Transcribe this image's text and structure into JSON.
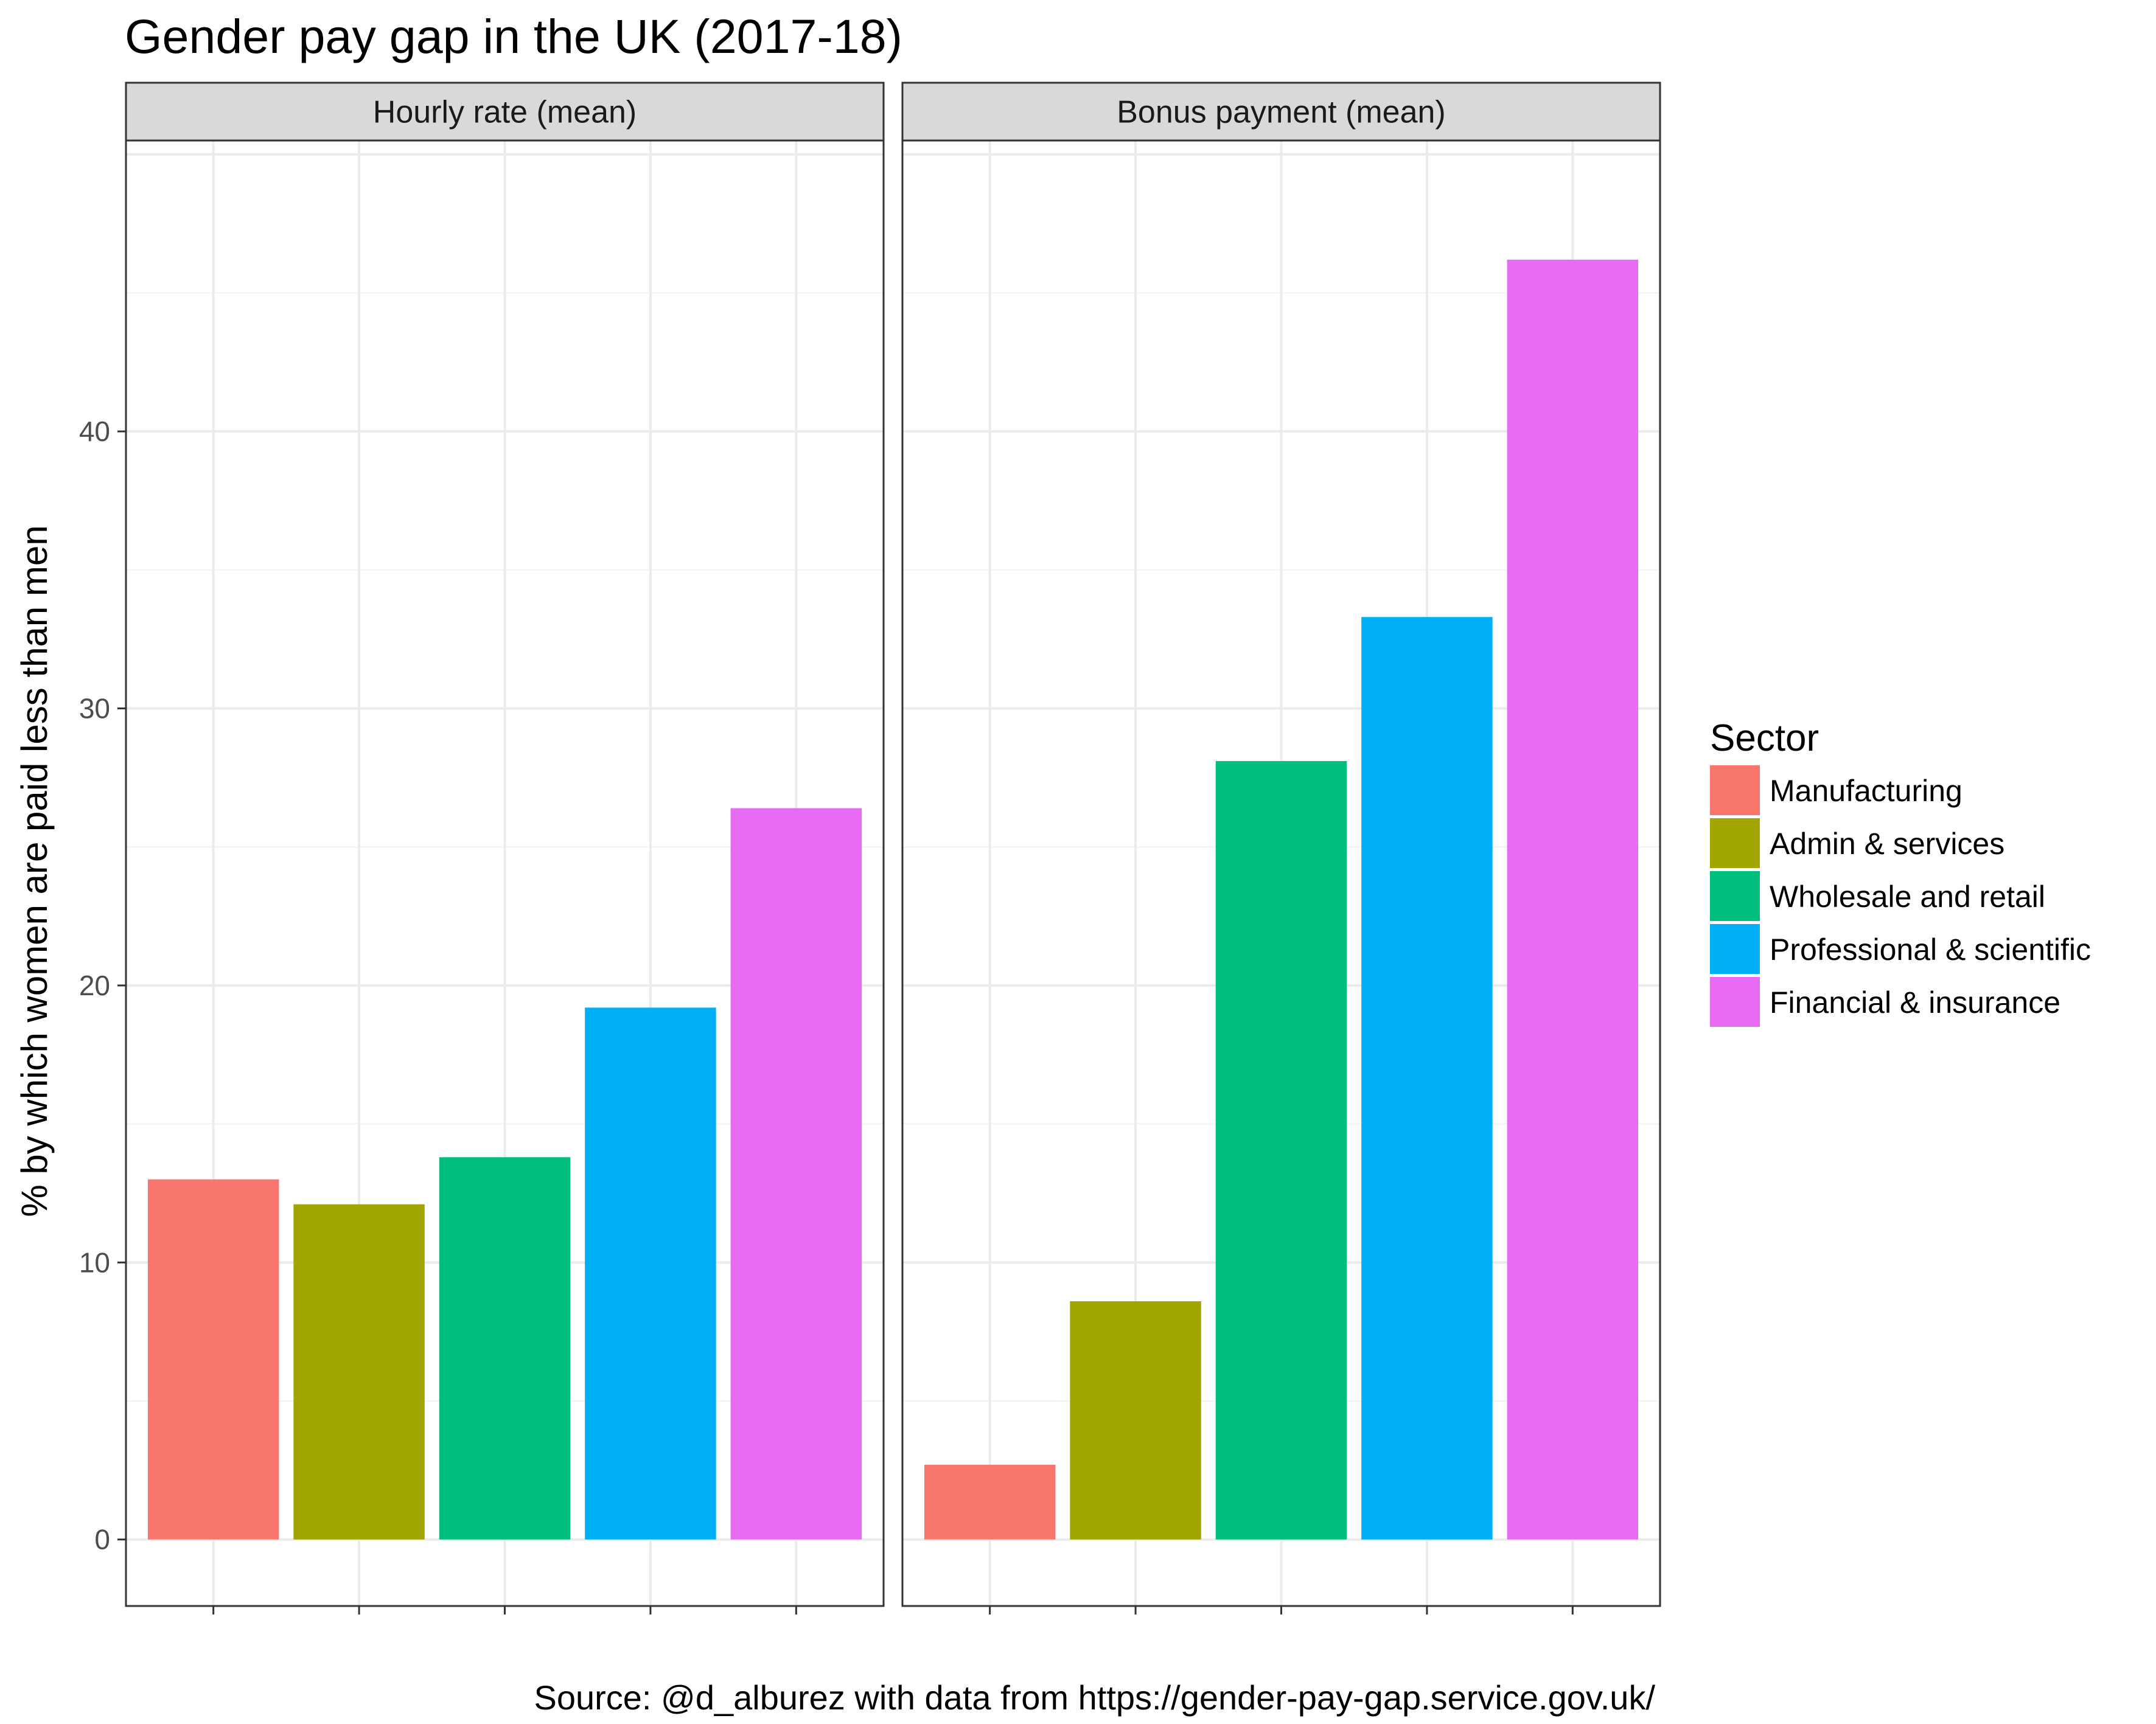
{
  "chart_data": {
    "type": "bar",
    "title": "Gender pay gap in the UK (2017-18)",
    "xlabel": "",
    "ylabel": "% by which women are paid less than men",
    "caption": "Source: @d_alburez with data from https://gender-pay-gap.service.gov.uk/",
    "ylim": [
      -2.4,
      50.5
    ],
    "yticks": [
      "0",
      "10",
      "20",
      "30",
      "40"
    ],
    "grid": true,
    "legend": {
      "title": "Sector",
      "position": "right",
      "items": [
        {
          "label": "Manufacturing",
          "color": "#F8766D"
        },
        {
          "label": "Admin & services",
          "color": "#A3A500"
        },
        {
          "label": "Wholesale and retail",
          "color": "#00BF7D"
        },
        {
          "label": "Professional & scientific",
          "color": "#00B0F6"
        },
        {
          "label": "Financial & insurance",
          "color": "#E76BF3"
        }
      ]
    },
    "categories": [
      "Manufacturing",
      "Admin & services",
      "Wholesale and retail",
      "Professional & scientific",
      "Financial & insurance"
    ],
    "panels": [
      {
        "label": "Hourly rate (mean)",
        "values": [
          13.0,
          12.1,
          13.8,
          19.2,
          26.4
        ]
      },
      {
        "label": "Bonus payment (mean)",
        "values": [
          2.7,
          8.6,
          28.1,
          33.3,
          46.2
        ]
      }
    ]
  }
}
